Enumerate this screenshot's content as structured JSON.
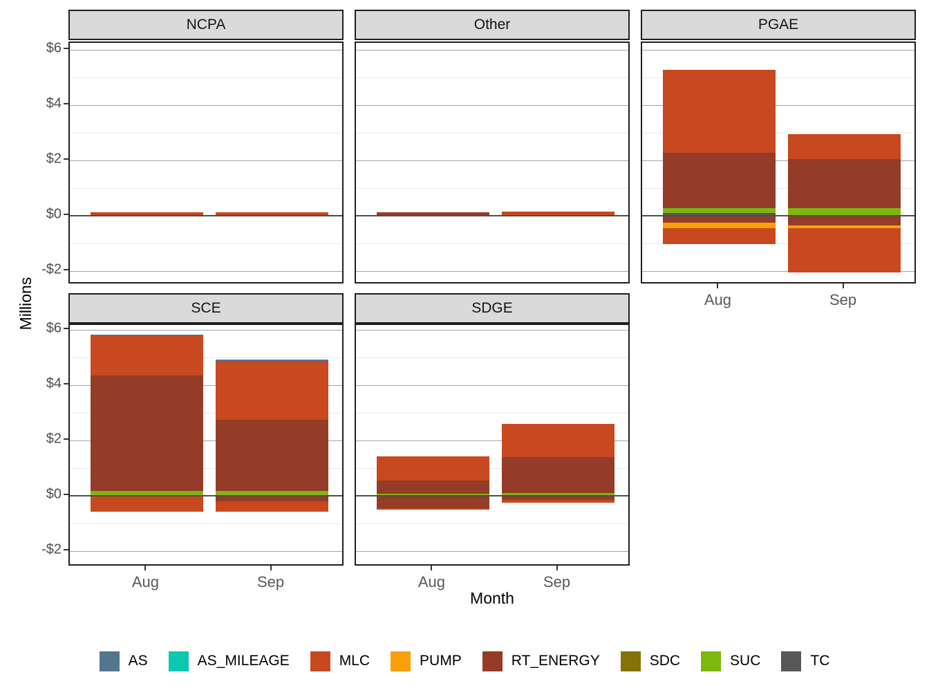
{
  "axes": {
    "y_title": "Millions",
    "x_title": "Month"
  },
  "legend": {
    "items": [
      {
        "label": "AS",
        "color": "#53758D"
      },
      {
        "label": "AS_MILEAGE",
        "color": "#0EC7B0"
      },
      {
        "label": "MLC",
        "color": "#C8481F"
      },
      {
        "label": "PUMP",
        "color": "#F9A008"
      },
      {
        "label": "RT_ENERGY",
        "color": "#943C27"
      },
      {
        "label": "SDC",
        "color": "#847408"
      },
      {
        "label": "SUC",
        "color": "#7CB80E"
      },
      {
        "label": "TC",
        "color": "#575757"
      }
    ]
  },
  "chart_data": {
    "type": "bar",
    "stacked": true,
    "units": "millions of dollars",
    "categories": [
      "Aug",
      "Sep"
    ],
    "x_tick_labels": [
      "Aug",
      "Sep"
    ],
    "y_major_ticks": [
      {
        "label": "$6",
        "value": 6
      },
      {
        "label": "$4",
        "value": 4
      },
      {
        "label": "$2",
        "value": 2
      },
      {
        "label": "$0",
        "value": 0
      },
      {
        "label": "-$2",
        "value": -2
      }
    ],
    "y_minor_ticks": [
      5,
      3,
      1,
      -1
    ],
    "ylim": [
      -2.5,
      6.25
    ],
    "grid": true,
    "zero_reference_line": true,
    "legend_position": "bottom",
    "series_colors": {
      "AS": "#53758D",
      "AS_MILEAGE": "#0EC7B0",
      "MLC": "#C8481F",
      "PUMP": "#F9A008",
      "RT_ENERGY": "#943C27",
      "SDC": "#847408",
      "SUC": "#7CB80E",
      "TC": "#575757"
    },
    "facets": [
      {
        "name": "NCPA",
        "row": 0,
        "col": 0,
        "show_y_axis": true,
        "show_x_axis": false,
        "bars": [
          {
            "month": "Aug",
            "positive_stack_bottom_to_top": [
              [
                "SDC",
                0.02
              ],
              [
                "MLC",
                0.1
              ]
            ],
            "negative_stack_zero_down": []
          },
          {
            "month": "Sep",
            "positive_stack_bottom_to_top": [
              [
                "SDC",
                0.02
              ],
              [
                "MLC",
                0.11
              ]
            ],
            "negative_stack_zero_down": []
          }
        ]
      },
      {
        "name": "Other",
        "row": 0,
        "col": 1,
        "show_y_axis": false,
        "show_x_axis": false,
        "bars": [
          {
            "month": "Aug",
            "positive_stack_bottom_to_top": [
              [
                "RT_ENERGY",
                0.12
              ]
            ],
            "negative_stack_zero_down": [
              [
                "RT_ENERGY",
                0.03
              ]
            ]
          },
          {
            "month": "Sep",
            "positive_stack_bottom_to_top": [
              [
                "RT_ENERGY",
                0.02
              ],
              [
                "MLC",
                0.13
              ]
            ],
            "negative_stack_zero_down": []
          }
        ]
      },
      {
        "name": "PGAE",
        "row": 0,
        "col": 2,
        "show_y_axis": false,
        "show_x_axis": true,
        "bars": [
          {
            "month": "Aug",
            "positive_stack_bottom_to_top": [
              [
                "TC",
                0.1
              ],
              [
                "SUC",
                0.18
              ],
              [
                "RT_ENERGY",
                2.0
              ],
              [
                "MLC",
                3.0
              ]
            ],
            "negative_stack_zero_down": [
              [
                "RT_ENERGY",
                0.25
              ],
              [
                "PUMP",
                0.2
              ],
              [
                "MLC",
                0.58
              ]
            ]
          },
          {
            "month": "Sep",
            "positive_stack_bottom_to_top": [
              [
                "TC",
                0.03
              ],
              [
                "SUC",
                0.24
              ],
              [
                "RT_ENERGY",
                1.77
              ],
              [
                "MLC",
                0.92
              ]
            ],
            "negative_stack_zero_down": [
              [
                "RT_ENERGY",
                0.36
              ],
              [
                "PUMP",
                0.08
              ],
              [
                "MLC",
                1.6
              ]
            ]
          }
        ]
      },
      {
        "name": "SCE",
        "row": 1,
        "col": 0,
        "show_y_axis": true,
        "show_x_axis": true,
        "bars": [
          {
            "month": "Aug",
            "positive_stack_bottom_to_top": [
              [
                "TC",
                0.03
              ],
              [
                "SUC",
                0.15
              ],
              [
                "RT_ENERGY",
                4.17
              ],
              [
                "MLC",
                1.44
              ],
              [
                "AS",
                0.04
              ]
            ],
            "negative_stack_zero_down": [
              [
                "MLC",
                0.58
              ]
            ]
          },
          {
            "month": "Sep",
            "positive_stack_bottom_to_top": [
              [
                "SUC",
                0.17
              ],
              [
                "RT_ENERGY",
                2.58
              ],
              [
                "MLC",
                2.13
              ],
              [
                "AS",
                0.04
              ]
            ],
            "negative_stack_zero_down": [
              [
                "RT_ENERGY",
                0.21
              ],
              [
                "MLC",
                0.37
              ]
            ]
          }
        ]
      },
      {
        "name": "SDGE",
        "row": 1,
        "col": 1,
        "show_y_axis": false,
        "show_x_axis": true,
        "bars": [
          {
            "month": "Aug",
            "positive_stack_bottom_to_top": [
              [
                "SUC",
                0.07
              ],
              [
                "RT_ENERGY",
                0.47
              ],
              [
                "MLC",
                0.89
              ]
            ],
            "negative_stack_zero_down": [
              [
                "RT_ENERGY",
                0.44
              ],
              [
                "MLC",
                0.06
              ]
            ]
          },
          {
            "month": "Sep",
            "positive_stack_bottom_to_top": [
              [
                "SUC",
                0.11
              ],
              [
                "RT_ENERGY",
                1.28
              ],
              [
                "MLC",
                1.21
              ]
            ],
            "negative_stack_zero_down": [
              [
                "RT_ENERGY",
                0.15
              ],
              [
                "MLC",
                0.1
              ]
            ]
          }
        ]
      }
    ]
  }
}
